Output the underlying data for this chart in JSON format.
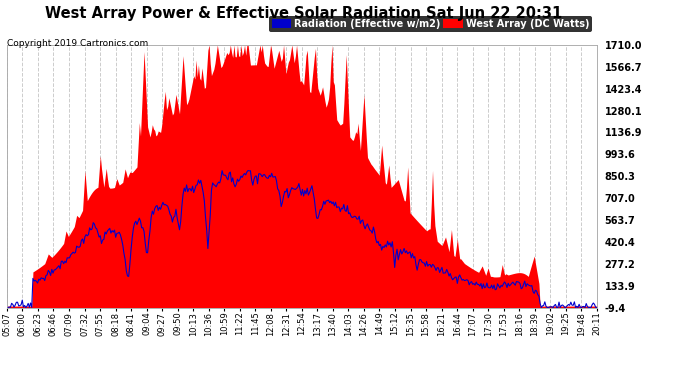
{
  "title": "West Array Power & Effective Solar Radiation Sat Jun 22 20:31",
  "copyright": "Copyright 2019 Cartronics.com",
  "legend_blue": "Radiation (Effective w/m2)",
  "legend_red": "West Array (DC Watts)",
  "bg_color": "#ffffff",
  "plot_bg_color": "#ffffff",
  "grid_color": "#cccccc",
  "title_color": "#000000",
  "copyright_color": "#000000",
  "right_yticks": [
    -9.4,
    133.9,
    277.2,
    420.4,
    563.7,
    707.0,
    850.3,
    993.6,
    1136.9,
    1280.1,
    1423.4,
    1566.7,
    1710.0
  ],
  "x_labels": [
    "05:07",
    "06:00",
    "06:23",
    "06:46",
    "07:09",
    "07:32",
    "07:55",
    "08:18",
    "08:41",
    "09:04",
    "09:27",
    "09:50",
    "10:13",
    "10:36",
    "10:59",
    "11:22",
    "11:45",
    "12:08",
    "12:31",
    "12:54",
    "13:17",
    "13:40",
    "14:03",
    "14:26",
    "14:49",
    "15:12",
    "15:35",
    "15:58",
    "16:21",
    "16:44",
    "17:07",
    "17:30",
    "17:53",
    "18:16",
    "18:39",
    "19:02",
    "19:25",
    "19:48",
    "20:11"
  ],
  "n_points": 500,
  "ymin": -9.4,
  "ymax": 1710.0,
  "red_color": "#ff0000",
  "blue_line_color": "#0000cc",
  "legend_blue_bg": "#0000cc",
  "legend_red_bg": "#ff0000"
}
